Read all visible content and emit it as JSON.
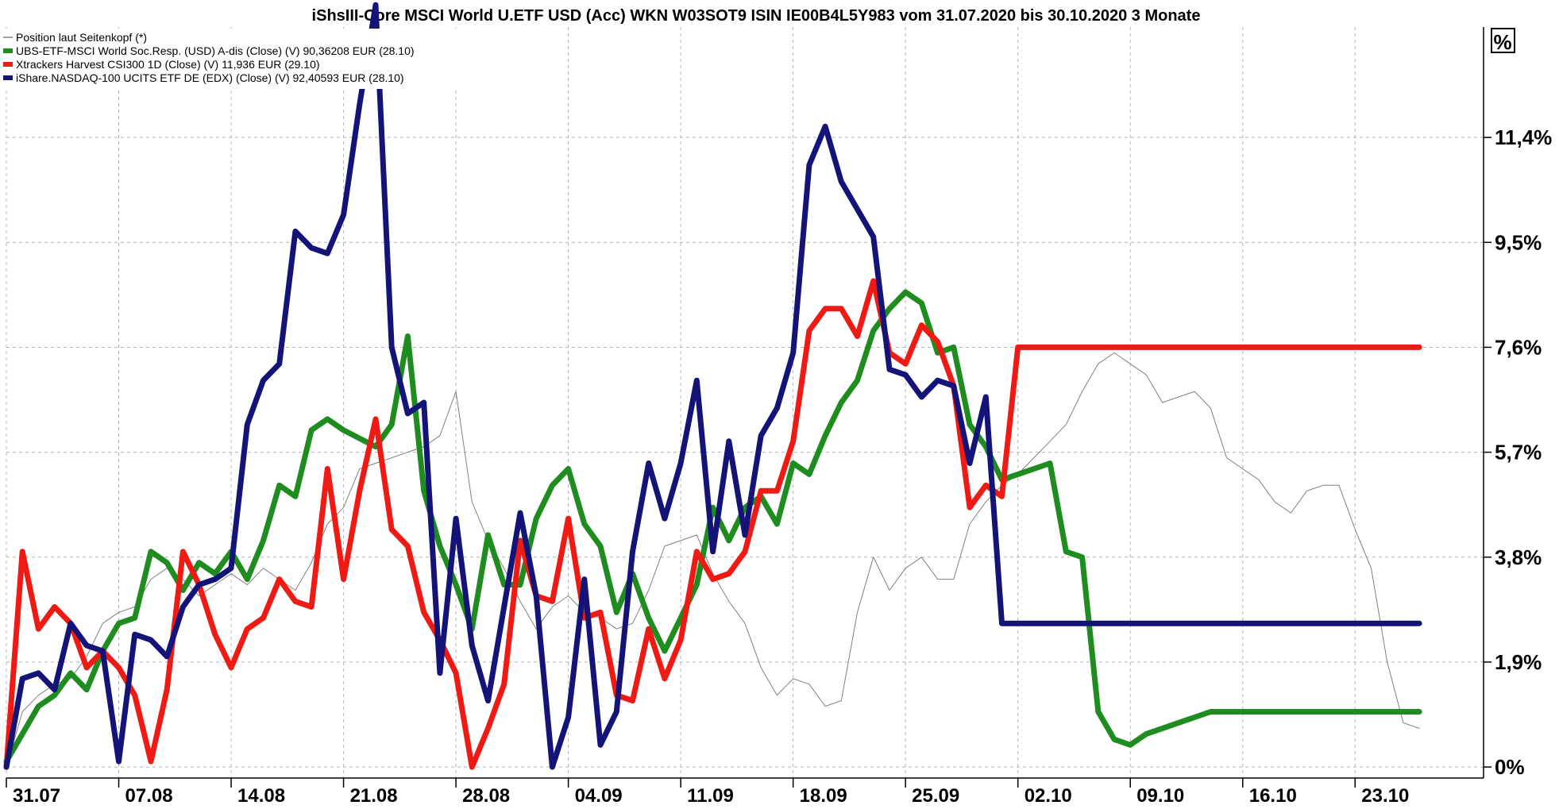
{
  "chart_data": {
    "type": "line",
    "title": "iShsIII-Core MSCI World U.ETF USD (Acc) WKN W03SOT9 ISIN IE00B4L5Y983 vom 31.07.2020 bis 30.10.2020 3 Monate",
    "unit_label": "%",
    "x_ticks": [
      "31.07",
      "07.08",
      "14.08",
      "21.08",
      "28.08",
      "04.09",
      "11.09",
      "18.09",
      "25.09",
      "02.10",
      "09.10",
      "16.10",
      "23.10"
    ],
    "y_ticks": [
      "0%",
      "1,9%",
      "3,8%",
      "5,7%",
      "7,6%",
      "9,5%",
      "11,4%"
    ],
    "y_tick_values": [
      0,
      1.9,
      3.8,
      5.7,
      7.6,
      9.5,
      11.4
    ],
    "ylim": [
      -0.2,
      13.4
    ],
    "x_day_range": [
      0,
      92
    ],
    "grid": true,
    "legend_position": "top-left",
    "series": [
      {
        "name": "Position laut Seitenkopf (*)",
        "color": "#808080",
        "width": 1,
        "x": [
          0,
          1,
          2,
          3,
          4,
          5,
          6,
          7,
          8,
          9,
          10,
          11,
          12,
          13,
          14,
          15,
          16,
          17,
          18,
          19,
          20,
          21,
          22,
          23,
          24,
          25,
          26,
          27,
          28,
          29,
          30,
          31,
          32,
          33,
          34,
          35,
          36,
          37,
          38,
          39,
          40,
          41,
          42,
          43,
          44,
          45,
          46,
          47,
          48,
          49,
          50,
          51,
          52,
          53,
          54,
          55,
          56,
          57,
          58,
          59,
          60,
          61,
          62,
          63,
          64,
          65,
          66,
          67,
          68,
          69,
          70,
          71,
          72,
          73,
          74,
          75,
          76,
          77,
          78,
          79,
          80,
          81,
          82,
          83,
          84,
          85,
          86,
          87,
          88
        ],
        "values": [
          0.0,
          1.0,
          1.3,
          1.5,
          1.6,
          2.0,
          2.6,
          2.8,
          2.9,
          3.4,
          3.6,
          3.4,
          3.1,
          3.3,
          3.5,
          3.3,
          3.6,
          3.4,
          3.2,
          3.7,
          4.4,
          4.7,
          5.4,
          5.5,
          5.6,
          5.7,
          5.8,
          6.0,
          6.8,
          4.8,
          4.1,
          3.6,
          3.0,
          2.5,
          2.9,
          3.1,
          2.8,
          2.7,
          2.5,
          2.6,
          3.2,
          4.0,
          4.1,
          4.2,
          3.5,
          3.0,
          2.6,
          1.8,
          1.3,
          1.6,
          1.5,
          1.1,
          1.2,
          2.8,
          3.8,
          3.2,
          3.6,
          3.8,
          3.4,
          3.4,
          4.4,
          4.8,
          5.1,
          5.3,
          5.6,
          5.9,
          6.2,
          6.8,
          7.3,
          7.5,
          7.3,
          7.1,
          6.6,
          6.7,
          6.8,
          6.5,
          5.6,
          5.4,
          5.2,
          4.8,
          4.6,
          5.0,
          5.1,
          5.1,
          4.3,
          3.6,
          1.9,
          0.8,
          0.7
        ]
      },
      {
        "name": "UBS-ETF-MSCI World Soc.Resp. (USD) A-dis (Close) (V) 90,36208 EUR (28.10)",
        "color": "#1e8c1e",
        "width": 7,
        "x": [
          0,
          2,
          3,
          4,
          5,
          6,
          7,
          8,
          9,
          10,
          11,
          12,
          13,
          14,
          15,
          16,
          17,
          18,
          19,
          20,
          21,
          23,
          24,
          25,
          26,
          27,
          28,
          29,
          30,
          31,
          32,
          33,
          34,
          35,
          36,
          37,
          38,
          39,
          40,
          41,
          42,
          43,
          44,
          45,
          46,
          47,
          48,
          49,
          50,
          51,
          52,
          53,
          54,
          55,
          56,
          57,
          58,
          59,
          60,
          61,
          62,
          63,
          64,
          65,
          66,
          67,
          68,
          69,
          70,
          71,
          72,
          73,
          74,
          75,
          76,
          77,
          78,
          79,
          80,
          81,
          82,
          83,
          84,
          86,
          87,
          88
        ],
        "values": [
          0.1,
          1.1,
          1.3,
          1.7,
          1.4,
          2.1,
          2.6,
          2.7,
          3.9,
          3.7,
          3.2,
          3.7,
          3.5,
          3.9,
          3.4,
          4.1,
          5.1,
          4.9,
          6.1,
          6.3,
          6.1,
          5.8,
          6.2,
          7.8,
          5.0,
          4.0,
          3.3,
          2.5,
          4.2,
          3.3,
          3.3,
          4.5,
          5.1,
          5.4,
          4.4,
          4.0,
          2.8,
          3.5,
          2.7,
          2.1,
          2.7,
          3.3,
          4.7,
          4.1,
          4.7,
          4.9,
          4.4,
          5.5,
          5.3,
          6.0,
          6.6,
          7.0,
          7.9,
          8.3,
          8.6,
          8.4,
          7.5,
          7.6,
          6.2,
          5.8,
          5.2,
          5.3,
          5.4,
          5.5,
          3.9,
          3.8,
          1.0,
          0.5,
          0.4,
          0.6,
          0.7,
          0.8,
          0.9,
          1.0,
          1.0,
          1.0,
          1.0,
          1.0,
          1.0,
          1.0,
          1.0,
          1.0,
          1.0,
          1.0,
          1.0,
          1.0
        ]
      },
      {
        "name": "Xtrackers Harvest CSI300 1D (Close) (V) 11,936 EUR (29.10)",
        "color": "#f01a14",
        "width": 7,
        "x": [
          0,
          1,
          2,
          3,
          4,
          5,
          6,
          7,
          8,
          9,
          10,
          11,
          12,
          13,
          14,
          15,
          16,
          17,
          18,
          19,
          20,
          21,
          22,
          23,
          24,
          25,
          26,
          27,
          28,
          29,
          30,
          31,
          32,
          33,
          34,
          35,
          36,
          37,
          38,
          39,
          40,
          41,
          42,
          43,
          44,
          45,
          46,
          47,
          48,
          49,
          50,
          51,
          52,
          53,
          54,
          55,
          56,
          57,
          58,
          59,
          60,
          61,
          62,
          63,
          64,
          65,
          66,
          67,
          68,
          69,
          70,
          71,
          72,
          73,
          74,
          75,
          76,
          77,
          78,
          79,
          80,
          81,
          82,
          83,
          84,
          85,
          86,
          87,
          88
        ],
        "values": [
          0.0,
          3.9,
          2.5,
          2.9,
          2.6,
          1.8,
          2.1,
          1.8,
          1.3,
          0.1,
          1.4,
          3.9,
          3.3,
          2.4,
          1.8,
          2.5,
          2.7,
          3.4,
          3.0,
          2.9,
          5.4,
          3.4,
          5.0,
          6.3,
          4.3,
          4.0,
          2.8,
          2.3,
          1.7,
          0.0,
          0.7,
          1.5,
          4.1,
          3.1,
          3.0,
          4.5,
          2.7,
          2.8,
          1.3,
          1.2,
          2.5,
          1.6,
          2.3,
          3.9,
          3.4,
          3.5,
          3.9,
          5.0,
          5.0,
          5.9,
          7.9,
          8.3,
          8.3,
          7.8,
          8.8,
          7.5,
          7.3,
          8.0,
          7.7,
          6.9,
          4.7,
          5.1,
          4.9,
          7.6,
          7.6,
          7.6,
          7.6,
          7.6,
          7.6,
          7.6,
          7.6,
          7.6,
          7.6,
          7.6,
          7.6,
          7.6,
          7.6,
          7.6,
          7.6,
          7.6,
          7.6,
          7.6,
          7.6,
          7.6,
          7.6,
          7.6,
          7.6,
          7.6,
          7.6
        ]
      },
      {
        "name": "iShare.NASDAQ-100 UCITS ETF DE (EDX) (Close) (V) 92,40593 EUR (28.10)",
        "color": "#141478",
        "width": 7,
        "x": [
          0,
          1,
          2,
          3,
          4,
          5,
          6,
          7,
          8,
          9,
          10,
          11,
          12,
          13,
          14,
          15,
          16,
          17,
          18,
          19,
          20,
          21,
          22,
          23,
          24,
          25,
          26,
          27,
          28,
          29,
          30,
          31,
          32,
          33,
          34,
          35,
          36,
          37,
          38,
          39,
          40,
          41,
          42,
          43,
          44,
          45,
          46,
          47,
          48,
          49,
          50,
          51,
          52,
          53,
          54,
          55,
          56,
          57,
          58,
          59,
          60,
          61,
          62,
          63,
          64,
          65,
          66,
          67,
          68,
          69,
          70,
          71,
          72,
          73,
          74,
          75,
          76,
          77,
          78,
          79,
          80,
          81,
          82,
          83,
          84,
          85,
          86,
          87,
          88
        ],
        "values": [
          0.0,
          1.6,
          1.7,
          1.4,
          2.6,
          2.2,
          2.1,
          0.1,
          2.4,
          2.3,
          2.0,
          2.9,
          3.3,
          3.4,
          3.6,
          6.2,
          7.0,
          7.3,
          9.7,
          9.4,
          9.3,
          10.0,
          12.0,
          13.8,
          7.6,
          6.4,
          6.6,
          1.7,
          4.5,
          2.2,
          1.2,
          2.9,
          4.6,
          3.1,
          0.0,
          0.9,
          3.4,
          0.4,
          1.0,
          3.9,
          5.5,
          4.5,
          5.5,
          7.0,
          3.9,
          5.9,
          4.2,
          6.0,
          6.5,
          7.5,
          10.9,
          11.6,
          10.6,
          10.1,
          9.6,
          7.2,
          7.1,
          6.7,
          7.0,
          6.9,
          5.5,
          6.7,
          2.6,
          2.6,
          2.6,
          2.6,
          2.6,
          2.6,
          2.6,
          2.6,
          2.6,
          2.6,
          2.6,
          2.6,
          2.6,
          2.6,
          2.6,
          2.6,
          2.6,
          2.6,
          2.6,
          2.6,
          2.6,
          2.6,
          2.6,
          2.6,
          2.6,
          2.6,
          2.6
        ]
      }
    ]
  }
}
